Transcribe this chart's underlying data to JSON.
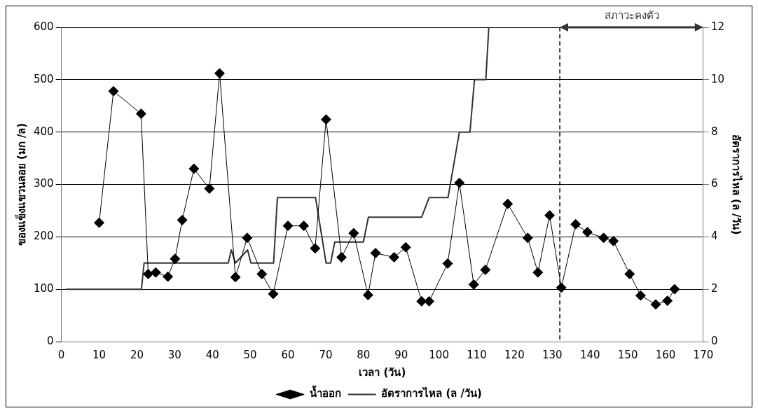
{
  "chart_data": {
    "type": "line",
    "xlabel": "เวลา (วัน)",
    "ylabel": "ของแข็งแขวนลอย (มก /ล)",
    "y2label": "อัตราการไหล (ล /วัน)",
    "xlim": [
      0,
      170
    ],
    "xticks": [
      0,
      10,
      20,
      30,
      40,
      50,
      60,
      70,
      80,
      90,
      100,
      110,
      120,
      130,
      140,
      150,
      160,
      170
    ],
    "ylim": [
      0,
      600
    ],
    "yticks": [
      0,
      100,
      200,
      300,
      400,
      500,
      600
    ],
    "y2lim": [
      0,
      12
    ],
    "y2ticks": [
      0,
      2,
      4,
      6,
      8,
      10,
      12
    ],
    "grid": "y",
    "legend": "bottom",
    "series": [
      {
        "name": "น้ำออก",
        "type": "line",
        "marker": "diamond",
        "color": "#000000",
        "x": [
          10,
          13.8,
          21.1,
          23,
          25,
          28.2,
          30.1,
          32,
          35.1,
          39.2,
          41.9,
          46.1,
          49.2,
          53.1,
          56.1,
          60,
          64.2,
          67.2,
          70.1,
          74.2,
          77.4,
          81.2,
          83.2,
          88.1,
          91.2,
          95.4,
          97.4,
          102.3,
          105.4,
          109.2,
          112.3,
          118.2,
          123.5,
          126.2,
          129.3,
          132.4,
          136.2,
          139.3,
          143.6,
          146.2,
          150.5,
          153.4,
          157.4,
          160.5,
          162.4
        ],
        "values": [
          227,
          478,
          435,
          129,
          132,
          124,
          158,
          232,
          330,
          292,
          512,
          123,
          198,
          129,
          91,
          221,
          221,
          178,
          424,
          161,
          207,
          89,
          169,
          161,
          180,
          77,
          77,
          149,
          303,
          109,
          137,
          263,
          198,
          132,
          241,
          103,
          224,
          209,
          198,
          192,
          129,
          88,
          71,
          78,
          100
        ]
      },
      {
        "name": "อัตราการไหล (ล /วัน)",
        "type": "line",
        "marker": "none",
        "axis": "y2",
        "color": "#333333",
        "x": [
          1.2,
          21.2,
          21.9,
          44.2,
          45,
          46.1,
          49.3,
          50.2,
          56.2,
          57.2,
          67.3,
          70.1,
          71.3,
          72.4,
          80,
          81.3,
          95.4,
          97.4,
          102.4,
          105.4,
          108.2,
          109.4,
          112.4,
          113.2
        ],
        "values": [
          2,
          2,
          3,
          3,
          3.5,
          3,
          3.5,
          3,
          3,
          5.5,
          5.5,
          3,
          3,
          3.8,
          3.8,
          4.75,
          4.75,
          5.5,
          5.5,
          8,
          8,
          10,
          10,
          12
        ]
      }
    ],
    "ref_lines": [
      {
        "axis": "x",
        "value": 132,
        "line_style": "dashed",
        "color": "#000000"
      }
    ],
    "annotations": [
      "สภาวะคงตัว"
    ]
  }
}
